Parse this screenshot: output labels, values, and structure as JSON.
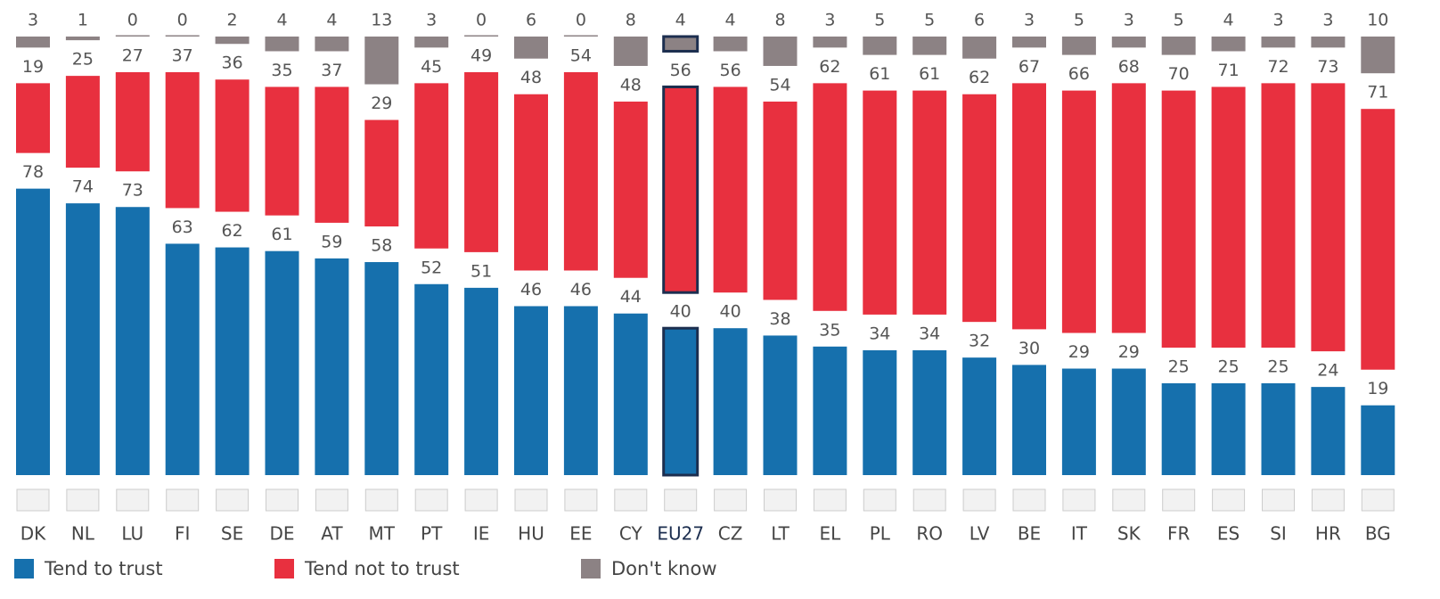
{
  "chart_data": {
    "type": "separated_stacked_bar",
    "categories": [
      "DK",
      "NL",
      "LU",
      "FI",
      "SE",
      "DE",
      "AT",
      "MT",
      "PT",
      "IE",
      "HU",
      "EE",
      "CY",
      "EU27",
      "CZ",
      "LT",
      "EL",
      "PL",
      "RO",
      "LV",
      "BE",
      "IT",
      "SK",
      "FR",
      "ES",
      "SI",
      "HR",
      "BG"
    ],
    "highlight": "EU27",
    "series": [
      {
        "name": "Tend to trust",
        "color": "#1670ad",
        "values": [
          78,
          74,
          73,
          63,
          62,
          61,
          59,
          58,
          52,
          51,
          46,
          46,
          44,
          40,
          40,
          38,
          35,
          34,
          34,
          32,
          30,
          29,
          29,
          25,
          25,
          25,
          24,
          19
        ]
      },
      {
        "name": "Tend not to trust",
        "color": "#e8303f",
        "values": [
          19,
          25,
          27,
          37,
          36,
          35,
          37,
          29,
          45,
          49,
          48,
          54,
          48,
          56,
          56,
          54,
          62,
          61,
          61,
          62,
          67,
          66,
          68,
          70,
          71,
          72,
          73,
          71
        ]
      },
      {
        "name": "Don't know",
        "color": "#8c8284",
        "values": [
          3,
          1,
          0,
          0,
          2,
          4,
          4,
          13,
          3,
          0,
          6,
          0,
          8,
          4,
          4,
          8,
          3,
          5,
          5,
          6,
          3,
          5,
          3,
          5,
          4,
          3,
          3,
          10
        ]
      }
    ]
  }
}
